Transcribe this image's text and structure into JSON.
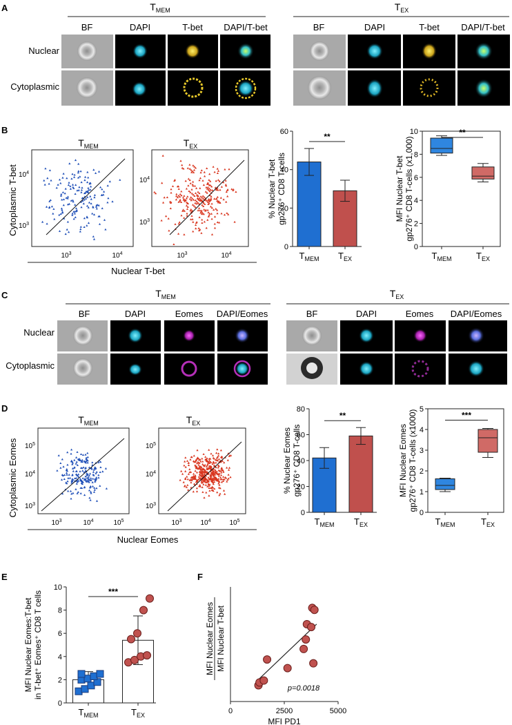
{
  "figure": {
    "panelA": {
      "letter": "A",
      "groups": [
        {
          "name_base": "T",
          "name_sub": "MEM",
          "columns": [
            "BF",
            "DAPI",
            "T-bet",
            "DAPI/T-bet"
          ]
        },
        {
          "name_base": "T",
          "name_sub": "EX",
          "columns": [
            "BF",
            "DAPI",
            "T-bet",
            "DAPI/T-bet"
          ]
        }
      ],
      "rows": [
        "Nuclear",
        "Cytoplasmic"
      ]
    },
    "panelB": {
      "letter": "B",
      "scatter": {
        "ylabel": "Cytoplasmic T-bet",
        "xlabel": "Nuclear T-bet",
        "titles": [
          {
            "base": "T",
            "sub": "MEM"
          },
          {
            "base": "T",
            "sub": "EX"
          }
        ],
        "ticks_base": [
          "10",
          "10"
        ],
        "ticks_exp": [
          "3",
          "4"
        ]
      }
    },
    "panelC": {
      "letter": "C",
      "groups": [
        {
          "name_base": "T",
          "name_sub": "MEM",
          "columns": [
            "BF",
            "DAPI",
            "Eomes",
            "DAPI/Eomes"
          ]
        },
        {
          "name_base": "T",
          "name_sub": "EX",
          "columns": [
            "BF",
            "DAPI",
            "Eomes",
            "DAPI/Eomes"
          ]
        }
      ],
      "rows": [
        "Nuclear",
        "Cytoplasmic"
      ]
    },
    "panelD": {
      "letter": "D",
      "scatter": {
        "ylabel": "Cytoplasmic Eomes",
        "xlabel": "Nuclear Eomes",
        "titles": [
          {
            "base": "T",
            "sub": "MEM"
          },
          {
            "base": "T",
            "sub": "EX"
          }
        ],
        "ticks_base": [
          "10",
          "10",
          "10"
        ],
        "ticks_exp": [
          "3",
          "4",
          "5"
        ]
      }
    },
    "panelE": {
      "letter": "E"
    },
    "panelF": {
      "letter": "F",
      "pvalue": "p=0.0018"
    },
    "colors": {
      "tmem": "#1f6fd1",
      "tex": "#c0504d",
      "tex_dot": "#d9361f",
      "tmem_dot": "#1f4fb8",
      "box_tex": "#d06a66",
      "box_tmem": "#2f86e0"
    }
  },
  "chart_data": [
    {
      "id": "B_bar",
      "type": "bar",
      "categories": [
        {
          "base": "T",
          "sub": "MEM"
        },
        {
          "base": "T",
          "sub": "EX"
        }
      ],
      "values": [
        44,
        29
      ],
      "errors": [
        7,
        5.5
      ],
      "ylabel_lines": [
        "% Nuclear T-bet",
        "gp276⁺ CD8 T-cells"
      ],
      "ylim": [
        0,
        60
      ],
      "yticks": [
        "0",
        "20",
        "40",
        "60"
      ],
      "significance": "**"
    },
    {
      "id": "B_box",
      "type": "box",
      "categories": [
        {
          "base": "T",
          "sub": "MEM"
        },
        {
          "base": "T",
          "sub": "EX"
        }
      ],
      "boxes": [
        {
          "min": 7.9,
          "q1": 8.1,
          "median": 8.5,
          "q3": 9.4,
          "max": 9.6
        },
        {
          "min": 5.6,
          "q1": 5.85,
          "median": 6.1,
          "q3": 6.9,
          "max": 7.2
        }
      ],
      "ylabel_lines": [
        "MFI Nuclear T-bet",
        "gp276⁺ CD8 T-cells (x1,000)"
      ],
      "ylim": [
        0,
        10
      ],
      "yticks": [
        "0",
        "2",
        "4",
        "6",
        "8",
        "10"
      ],
      "significance": "**"
    },
    {
      "id": "D_bar",
      "type": "bar",
      "categories": [
        {
          "base": "T",
          "sub": "MEM"
        },
        {
          "base": "T",
          "sub": "EX"
        }
      ],
      "values": [
        42,
        59
      ],
      "errors": [
        8,
        6.5
      ],
      "ylabel_lines": [
        "% Nuclear Eomes",
        "gp276⁺ CD8 T-cells"
      ],
      "ylim": [
        0,
        80
      ],
      "yticks": [
        "0",
        "20",
        "40",
        "60",
        "80"
      ],
      "significance": "**"
    },
    {
      "id": "D_box",
      "type": "box",
      "categories": [
        {
          "base": "T",
          "sub": "MEM"
        },
        {
          "base": "T",
          "sub": "EX"
        }
      ],
      "boxes": [
        {
          "min": 1.0,
          "q1": 1.1,
          "median": 1.3,
          "q3": 1.62,
          "max": 1.65
        },
        {
          "min": 2.65,
          "q1": 2.9,
          "median": 3.6,
          "q3": 4.0,
          "max": 4.05
        }
      ],
      "ylabel_lines": [
        "MFI Nuclear Eomes",
        "gp276⁺ CD8 T-cells (x1000)"
      ],
      "ylim": [
        0,
        5
      ],
      "yticks": [
        "0",
        "1",
        "2",
        "3",
        "4",
        "5"
      ],
      "significance": "***"
    },
    {
      "id": "E_bar",
      "type": "bar",
      "categories": [
        {
          "base": "T",
          "sub": "MEM"
        },
        {
          "base": "T",
          "sub": "EX"
        }
      ],
      "values": [
        2.0,
        5.4
      ],
      "errors": [
        0.7,
        2.1
      ],
      "points": [
        [
          1.0,
          1.2,
          1.5,
          1.8,
          2.0,
          2.1,
          2.3,
          2.5,
          2.5
        ],
        [
          3.5,
          3.7,
          4.0,
          4.1,
          5.5,
          6.0,
          8.0,
          9.0
        ]
      ],
      "ylabel_lines": [
        "MFI Nuclear Eomes:T-bet",
        "in T-bet⁺ Eomes⁺ CD8 T cells"
      ],
      "ylim": [
        0,
        10
      ],
      "yticks": [
        "0",
        "2",
        "4",
        "6",
        "8",
        "10"
      ],
      "significance": "***"
    },
    {
      "id": "F_scatter",
      "type": "scatter",
      "x": [
        1300,
        1350,
        1550,
        1700,
        2650,
        3400,
        3500,
        3550,
        3750,
        3800,
        3850,
        3900
      ],
      "y": [
        1.7,
        2.0,
        2.2,
        4.4,
        3.5,
        5.5,
        6.5,
        8.1,
        7.8,
        9.8,
        4.0,
        9.6
      ],
      "trendline": {
        "x": [
          1300,
          4000
        ],
        "y": [
          2.3,
          8.1
        ]
      },
      "xlabel": "MFI PD1",
      "ylabel_top": "MFI Nuclear Eomes",
      "ylabel_bottom": "MFI Nuclear T-bet",
      "xlim": [
        0,
        5000
      ],
      "ylim": [
        0,
        12
      ],
      "xticks": [
        "0",
        "2500",
        "5000"
      ]
    }
  ]
}
